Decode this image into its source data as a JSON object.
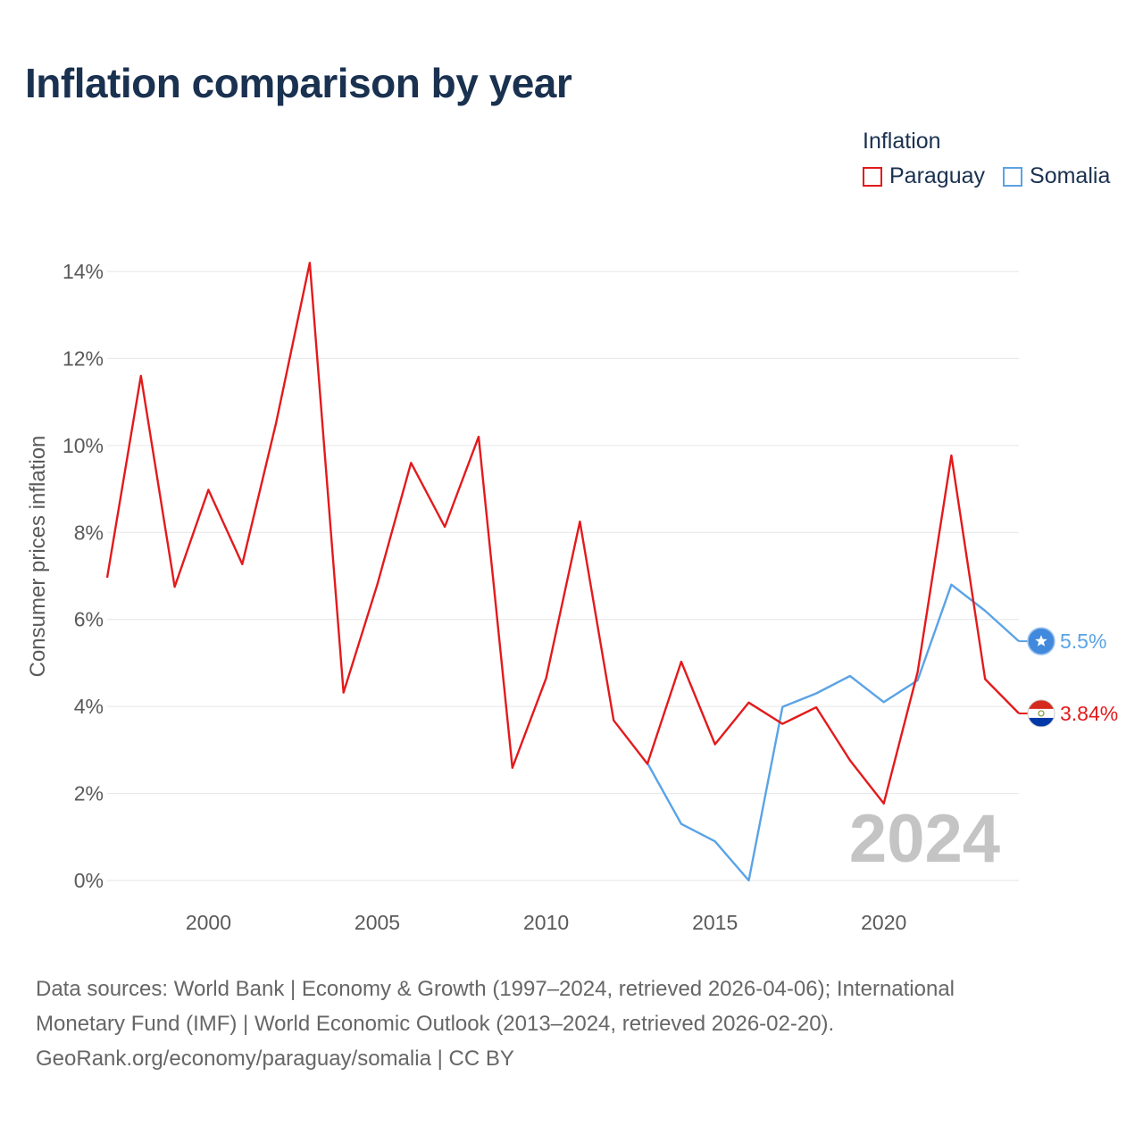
{
  "title": "Inflation comparison by year",
  "legend": {
    "title": "Inflation",
    "items": [
      {
        "label": "Paraguay",
        "color": "#e31a1c"
      },
      {
        "label": "Somalia",
        "color": "#5aa3e6"
      }
    ]
  },
  "chart_data": {
    "type": "line",
    "title": "Inflation comparison by year",
    "xlabel": "",
    "ylabel": "Consumer prices inflation",
    "xlim": [
      1997,
      2024
    ],
    "ylim": [
      0,
      14
    ],
    "yticks": [
      0,
      2,
      4,
      6,
      8,
      10,
      12,
      14
    ],
    "ytick_labels": [
      "0%",
      "2%",
      "4%",
      "6%",
      "8%",
      "10%",
      "12%",
      "14%"
    ],
    "xticks": [
      2000,
      2005,
      2010,
      2015,
      2020
    ],
    "xtick_labels": [
      "2000",
      "2005",
      "2010",
      "2015",
      "2020"
    ],
    "grid": true,
    "year_watermark": "2024",
    "series": [
      {
        "name": "Paraguay",
        "color": "#e31a1c",
        "end_label": "3.84%",
        "x": [
          1997,
          1998,
          1999,
          2000,
          2001,
          2002,
          2003,
          2004,
          2005,
          2006,
          2007,
          2008,
          2009,
          2010,
          2011,
          2012,
          2013,
          2014,
          2015,
          2016,
          2017,
          2018,
          2019,
          2020,
          2021,
          2022,
          2023,
          2024
        ],
        "values": [
          6.96,
          11.6,
          6.75,
          8.98,
          7.27,
          10.51,
          14.2,
          4.32,
          6.8,
          9.6,
          8.13,
          10.2,
          2.59,
          4.65,
          8.25,
          3.68,
          2.68,
          5.03,
          3.13,
          4.09,
          3.6,
          3.98,
          2.76,
          1.77,
          4.79,
          9.77,
          4.63,
          3.84
        ]
      },
      {
        "name": "Somalia",
        "color": "#5aa3e6",
        "end_label": "5.5%",
        "x": [
          2013,
          2014,
          2015,
          2016,
          2017,
          2018,
          2019,
          2020,
          2021,
          2022,
          2023,
          2024
        ],
        "values": [
          2.7,
          1.3,
          0.9,
          0.0,
          3.99,
          4.3,
          4.7,
          4.1,
          4.6,
          6.8,
          6.2,
          5.5
        ]
      }
    ]
  },
  "footer": {
    "line1": "Data sources: World Bank | Economy & Growth (1997–2024, retrieved 2026-04-06); International",
    "line2": "Monetary Fund (IMF) | World Economic Outlook (2013–2024, retrieved 2026-02-20).",
    "line3": "GeoRank.org/economy/paraguay/somalia | CC BY"
  }
}
